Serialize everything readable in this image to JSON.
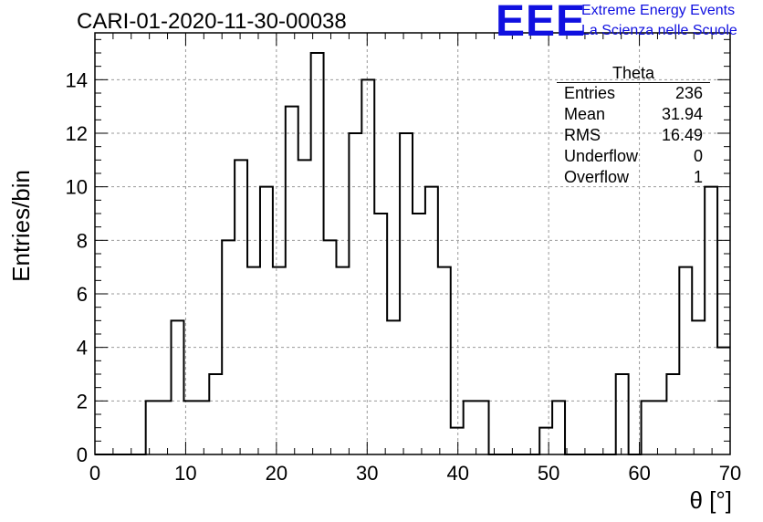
{
  "title": "CARI-01-2020-11-30-00038",
  "logo": {
    "mark": "EEE",
    "line1": "Extreme Energy Events",
    "line2": "La Scienza nelle Scuole"
  },
  "stats": {
    "name": "Theta",
    "rows": [
      {
        "label": "Entries",
        "value": "236"
      },
      {
        "label": "Mean",
        "value": "31.94"
      },
      {
        "label": "RMS",
        "value": "16.49"
      },
      {
        "label": "Underflow",
        "value": "0"
      },
      {
        "label": "Overflow",
        "value": "1"
      }
    ]
  },
  "chart_data": {
    "type": "bar",
    "style": "histogram-step",
    "xlabel": "θ [°]",
    "ylabel": "Entries/bin",
    "xlim": [
      0,
      70
    ],
    "ylim": [
      0,
      15.75
    ],
    "grid": true,
    "bin_width": 1.4,
    "x_ticks": [
      0,
      10,
      20,
      30,
      40,
      50,
      60,
      70
    ],
    "y_ticks": [
      0,
      2,
      4,
      6,
      8,
      10,
      12,
      14
    ],
    "bins_low_edge": [
      0,
      1.4,
      2.8,
      4.2,
      5.6,
      7.0,
      8.4,
      9.8,
      11.2,
      12.6,
      14.0,
      15.4,
      16.8,
      18.2,
      19.6,
      21.0,
      22.4,
      23.8,
      25.2,
      26.6,
      28.0,
      29.4,
      30.8,
      32.2,
      33.6,
      35.0,
      36.4,
      37.8,
      39.2,
      40.6,
      42.0,
      43.4,
      44.8,
      46.2,
      47.6,
      49.0,
      50.4,
      51.8,
      53.2,
      54.6,
      56.0,
      57.4,
      58.8,
      60.2,
      61.6,
      63.0,
      64.4,
      65.8,
      67.2,
      68.6
    ],
    "values": [
      0,
      0,
      0,
      0,
      2,
      2,
      5,
      2,
      2,
      3,
      8,
      11,
      7,
      10,
      7,
      13,
      11,
      15,
      8,
      7,
      12,
      14,
      9,
      5,
      12,
      9,
      10,
      7,
      1,
      2,
      2,
      0,
      0,
      0,
      0,
      1,
      2,
      0,
      0,
      0,
      0,
      3,
      0,
      2,
      2,
      3,
      7,
      5,
      10,
      4
    ]
  }
}
